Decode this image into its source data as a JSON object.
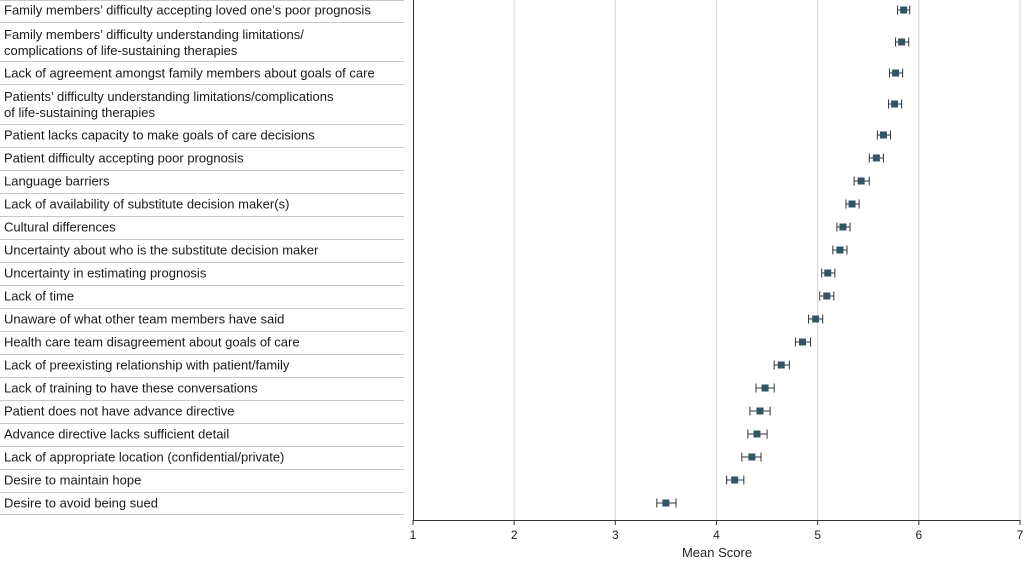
{
  "chart_data": {
    "type": "scatter",
    "title": "",
    "xlabel": "Mean Score",
    "ylabel": "",
    "xlim": [
      1,
      7
    ],
    "x_ticks": [
      1,
      2,
      3,
      4,
      5,
      6,
      7
    ],
    "grid": "vertical",
    "legend": "none",
    "marker_color": "#2f5566",
    "categories": [
      [
        "Family members’ difficulty accepting loved one’s poor prognosis"
      ],
      [
        "Family members’ difficulty understanding limitations/",
        "complications of life-sustaining therapies"
      ],
      [
        "Lack of agreement amongst family members about goals of care"
      ],
      [
        "Patients’ difficulty understanding limitations/complications",
        "of life-sustaining therapies"
      ],
      [
        "Patient lacks capacity to make goals of care decisions"
      ],
      [
        "Patient difficulty accepting poor prognosis"
      ],
      [
        "Language barriers"
      ],
      [
        "Lack of availability of substitute decision maker(s)"
      ],
      [
        "Cultural differences"
      ],
      [
        "Uncertainty about who is the substitute decision maker"
      ],
      [
        "Uncertainty in estimating prognosis"
      ],
      [
        "Lack of time"
      ],
      [
        "Unaware of what other team members have said"
      ],
      [
        "Health care team disagreement about goals of care"
      ],
      [
        "Lack of preexisting relationship with patient/family"
      ],
      [
        "Lack of training to have these conversations"
      ],
      [
        "Patient does not have advance directive"
      ],
      [
        "Advance directive lacks sufficient detail"
      ],
      [
        "Lack of appropriate location (confidential/private)"
      ],
      [
        "Desire to maintain hope"
      ],
      [
        "Desire to avoid being sued"
      ]
    ],
    "values": [
      5.85,
      5.83,
      5.77,
      5.76,
      5.65,
      5.58,
      5.43,
      5.34,
      5.25,
      5.22,
      5.1,
      5.09,
      4.98,
      4.85,
      4.64,
      4.48,
      4.43,
      4.4,
      4.35,
      4.18,
      3.5
    ],
    "ci_low": [
      5.79,
      5.77,
      5.71,
      5.7,
      5.59,
      5.51,
      5.36,
      5.28,
      5.19,
      5.15,
      5.04,
      5.02,
      4.91,
      4.78,
      4.57,
      4.39,
      4.33,
      4.31,
      4.25,
      4.1,
      3.41
    ],
    "ci_high": [
      5.91,
      5.9,
      5.84,
      5.83,
      5.72,
      5.65,
      5.51,
      5.41,
      5.32,
      5.29,
      5.17,
      5.16,
      5.05,
      4.93,
      4.72,
      4.57,
      4.53,
      4.5,
      4.44,
      4.27,
      3.6
    ]
  }
}
